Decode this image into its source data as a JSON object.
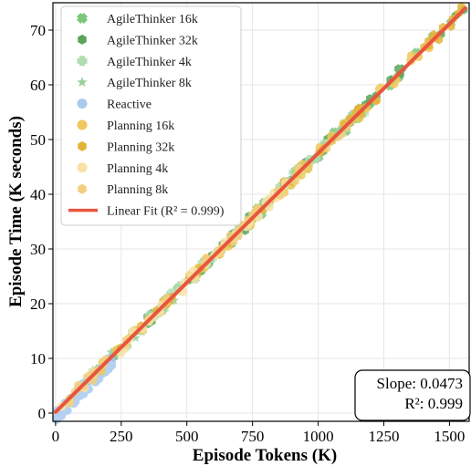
{
  "chart_data": {
    "type": "scatter",
    "xlabel": "Episode Tokens (K)",
    "ylabel": "Episode Time (K seconds)",
    "xlim": [
      -10,
      1575
    ],
    "ylim": [
      -1.5,
      75
    ],
    "x_ticks": [
      0,
      250,
      500,
      750,
      1000,
      1250,
      1500
    ],
    "y_ticks": [
      0,
      10,
      20,
      30,
      40,
      50,
      60,
      70
    ],
    "grid": true,
    "legend_position": "top-left",
    "series": [
      {
        "name": "AgileThinker 16k",
        "marker": "x-cross",
        "color": "#7cc77c",
        "x_range": [
          120,
          1540
        ],
        "count": 40
      },
      {
        "name": "AgileThinker 32k",
        "marker": "hexagon",
        "color": "#5aa55a",
        "x_range": [
          200,
          1560
        ],
        "count": 55
      },
      {
        "name": "AgileThinker 4k",
        "marker": "plus",
        "color": "#b0ddb0",
        "x_range": [
          60,
          1200
        ],
        "count": 40
      },
      {
        "name": "AgileThinker 8k",
        "marker": "star",
        "color": "#98cf98",
        "x_range": [
          80,
          1100
        ],
        "count": 35
      },
      {
        "name": "Reactive",
        "marker": "circle",
        "color": "#a9c9ef",
        "x_range": [
          0,
          220
        ],
        "count": 60
      },
      {
        "name": "Planning 16k",
        "marker": "circle",
        "color": "#f0c85c",
        "x_range": [
          40,
          1500
        ],
        "count": 50
      },
      {
        "name": "Planning 32k",
        "marker": "hexagon",
        "color": "#e5b33a",
        "x_range": [
          80,
          1560
        ],
        "count": 45
      },
      {
        "name": "Planning 4k",
        "marker": "circle",
        "color": "#f8e2a8",
        "x_range": [
          20,
          900
        ],
        "count": 40
      },
      {
        "name": "Planning 8k",
        "marker": "hexagon",
        "color": "#f2cf7e",
        "x_range": [
          30,
          1200
        ],
        "count": 40
      }
    ],
    "fit": {
      "name": "Linear Fit (R² = 0.999)",
      "color": "#e8553f",
      "slope": 0.0473,
      "intercept": 0.2,
      "x_range": [
        0,
        1560
      ]
    },
    "annotation": {
      "line1": "Slope: 0.0473",
      "line2": "R²: 0.999",
      "position": "bottom-right"
    }
  }
}
